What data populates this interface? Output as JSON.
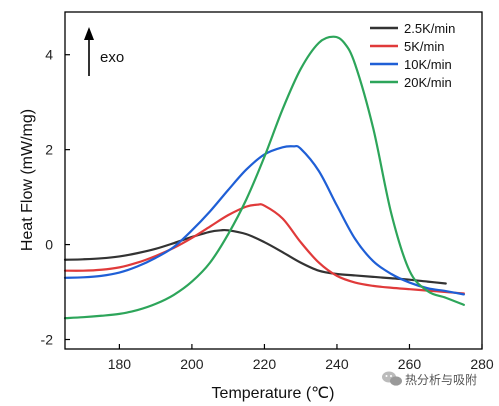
{
  "chart_data": {
    "type": "line",
    "xlabel": "Temperature (℃)",
    "ylabel": "Heat Flow (mW/mg)",
    "xlim": [
      165,
      280
    ],
    "ylim": [
      -2.2,
      4.9
    ],
    "x_ticks": [
      180,
      200,
      220,
      240,
      260,
      280
    ],
    "y_ticks": [
      -2,
      0,
      2,
      4
    ],
    "grid": false,
    "legend_position": "top-right",
    "annotation": "exo",
    "series": [
      {
        "name": "2.5K/min",
        "color": "#333333",
        "x": [
          165,
          170,
          175,
          180,
          185,
          190,
          195,
          200,
          205,
          208,
          210,
          215,
          220,
          225,
          230,
          235,
          240,
          245,
          250,
          255,
          260,
          265,
          270
        ],
        "y": [
          -0.32,
          -0.31,
          -0.29,
          -0.25,
          -0.18,
          -0.09,
          0.03,
          0.16,
          0.27,
          0.3,
          0.3,
          0.22,
          0.05,
          -0.16,
          -0.38,
          -0.55,
          -0.62,
          -0.65,
          -0.68,
          -0.71,
          -0.74,
          -0.78,
          -0.82
        ]
      },
      {
        "name": "5K/min",
        "color": "#e03a3a",
        "x": [
          165,
          170,
          175,
          180,
          185,
          190,
          195,
          200,
          205,
          210,
          215,
          218,
          220,
          225,
          230,
          235,
          240,
          245,
          250,
          255,
          260,
          265,
          270,
          275
        ],
        "y": [
          -0.55,
          -0.55,
          -0.53,
          -0.48,
          -0.38,
          -0.24,
          -0.07,
          0.14,
          0.38,
          0.62,
          0.8,
          0.84,
          0.82,
          0.55,
          0.05,
          -0.38,
          -0.66,
          -0.8,
          -0.87,
          -0.91,
          -0.94,
          -0.97,
          -1.0,
          -1.03
        ]
      },
      {
        "name": "10K/min",
        "color": "#1f5fd6",
        "x": [
          165,
          170,
          175,
          180,
          185,
          190,
          195,
          200,
          205,
          210,
          215,
          220,
          225,
          228,
          230,
          235,
          240,
          245,
          250,
          255,
          260,
          265,
          270,
          275
        ],
        "y": [
          -0.7,
          -0.69,
          -0.66,
          -0.59,
          -0.46,
          -0.28,
          -0.05,
          0.3,
          0.7,
          1.15,
          1.58,
          1.9,
          2.05,
          2.07,
          2.02,
          1.55,
          0.82,
          0.12,
          -0.35,
          -0.62,
          -0.8,
          -0.92,
          -0.98,
          -1.05
        ]
      },
      {
        "name": "20K/min",
        "color": "#2da55a",
        "x": [
          165,
          170,
          175,
          180,
          185,
          190,
          195,
          200,
          205,
          210,
          215,
          220,
          225,
          230,
          235,
          239,
          242,
          245,
          250,
          255,
          260,
          265,
          270,
          275
        ],
        "y": [
          -1.55,
          -1.53,
          -1.5,
          -1.46,
          -1.38,
          -1.25,
          -1.06,
          -0.78,
          -0.38,
          0.22,
          0.95,
          1.85,
          2.85,
          3.7,
          4.25,
          4.38,
          4.25,
          3.8,
          2.45,
          0.65,
          -0.55,
          -0.98,
          -1.12,
          -1.27
        ]
      }
    ]
  },
  "watermark": {
    "text": "热分析与吸附",
    "icon": "wechat-icon"
  }
}
